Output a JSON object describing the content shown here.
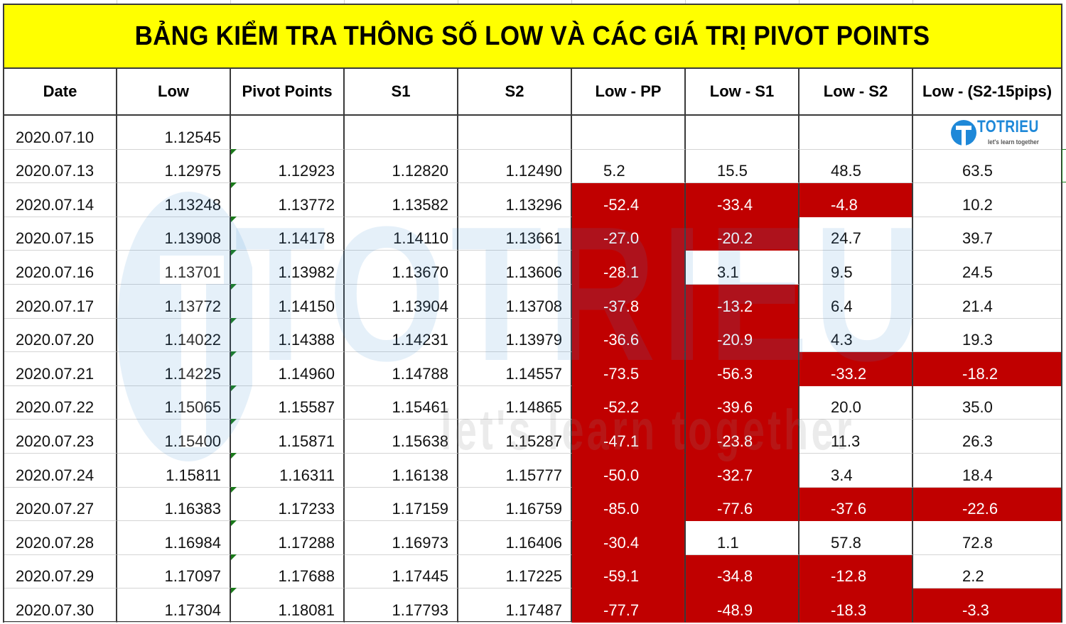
{
  "title": "BẢNG KIỂM TRA THÔNG SỐ LOW VÀ CÁC GIÁ TRỊ PIVOT POINTS",
  "colors": {
    "title_bg": "#ffff00",
    "negative_bg": "#c00000",
    "negative_text": "#ffffff",
    "border": "#3a3a3a",
    "brand": "#1e88d8",
    "comment_flag": "#1a7a1a"
  },
  "brand": {
    "name": "TOTRIEU",
    "tagline": "let's learn together",
    "icon": "totrieu-logo-icon"
  },
  "watermark": {
    "text": "TOTRIEU",
    "tagline": "let's learn together"
  },
  "table": {
    "columns": [
      "Date",
      "Low",
      "Pivot Points",
      "S1",
      "S2",
      "Low - PP",
      "Low - S1",
      "Low - S2",
      "Low - (S2-15pips)"
    ],
    "rows": [
      {
        "date": "2020.07.10",
        "low": "1.12545",
        "pp": "",
        "s1": "",
        "s2": "",
        "low_pp": "",
        "low_s1": "",
        "low_s2": "",
        "low_s2_15": ""
      },
      {
        "date": "2020.07.13",
        "low": "1.12975",
        "pp": "1.12923",
        "s1": "1.12820",
        "s2": "1.12490",
        "low_pp": "5.2",
        "low_s1": "15.5",
        "low_s2": "48.5",
        "low_s2_15": "63.5"
      },
      {
        "date": "2020.07.14",
        "low": "1.13248",
        "pp": "1.13772",
        "s1": "1.13582",
        "s2": "1.13296",
        "low_pp": "-52.4",
        "low_s1": "-33.4",
        "low_s2": "-4.8",
        "low_s2_15": "10.2"
      },
      {
        "date": "2020.07.15",
        "low": "1.13908",
        "pp": "1.14178",
        "s1": "1.14110",
        "s2": "1.13661",
        "low_pp": "-27.0",
        "low_s1": "-20.2",
        "low_s2": "24.7",
        "low_s2_15": "39.7"
      },
      {
        "date": "2020.07.16",
        "low": "1.13701",
        "pp": "1.13982",
        "s1": "1.13670",
        "s2": "1.13606",
        "low_pp": "-28.1",
        "low_s1": "3.1",
        "low_s2": "9.5",
        "low_s2_15": "24.5"
      },
      {
        "date": "2020.07.17",
        "low": "1.13772",
        "pp": "1.14150",
        "s1": "1.13904",
        "s2": "1.13708",
        "low_pp": "-37.8",
        "low_s1": "-13.2",
        "low_s2": "6.4",
        "low_s2_15": "21.4"
      },
      {
        "date": "2020.07.20",
        "low": "1.14022",
        "pp": "1.14388",
        "s1": "1.14231",
        "s2": "1.13979",
        "low_pp": "-36.6",
        "low_s1": "-20.9",
        "low_s2": "4.3",
        "low_s2_15": "19.3"
      },
      {
        "date": "2020.07.21",
        "low": "1.14225",
        "pp": "1.14960",
        "s1": "1.14788",
        "s2": "1.14557",
        "low_pp": "-73.5",
        "low_s1": "-56.3",
        "low_s2": "-33.2",
        "low_s2_15": "-18.2"
      },
      {
        "date": "2020.07.22",
        "low": "1.15065",
        "pp": "1.15587",
        "s1": "1.15461",
        "s2": "1.14865",
        "low_pp": "-52.2",
        "low_s1": "-39.6",
        "low_s2": "20.0",
        "low_s2_15": "35.0"
      },
      {
        "date": "2020.07.23",
        "low": "1.15400",
        "pp": "1.15871",
        "s1": "1.15638",
        "s2": "1.15287",
        "low_pp": "-47.1",
        "low_s1": "-23.8",
        "low_s2": "11.3",
        "low_s2_15": "26.3"
      },
      {
        "date": "2020.07.24",
        "low": "1.15811",
        "pp": "1.16311",
        "s1": "1.16138",
        "s2": "1.15777",
        "low_pp": "-50.0",
        "low_s1": "-32.7",
        "low_s2": "3.4",
        "low_s2_15": "18.4"
      },
      {
        "date": "2020.07.27",
        "low": "1.16383",
        "pp": "1.17233",
        "s1": "1.17159",
        "s2": "1.16759",
        "low_pp": "-85.0",
        "low_s1": "-77.6",
        "low_s2": "-37.6",
        "low_s2_15": "-22.6"
      },
      {
        "date": "2020.07.28",
        "low": "1.16984",
        "pp": "1.17288",
        "s1": "1.16973",
        "s2": "1.16406",
        "low_pp": "-30.4",
        "low_s1": "1.1",
        "low_s2": "57.8",
        "low_s2_15": "72.8"
      },
      {
        "date": "2020.07.29",
        "low": "1.17097",
        "pp": "1.17688",
        "s1": "1.17445",
        "s2": "1.17225",
        "low_pp": "-59.1",
        "low_s1": "-34.8",
        "low_s2": "-12.8",
        "low_s2_15": "2.2"
      },
      {
        "date": "2020.07.30",
        "low": "1.17304",
        "pp": "1.18081",
        "s1": "1.17793",
        "s2": "1.17487",
        "low_pp": "-77.7",
        "low_s1": "-48.9",
        "low_s2": "-18.3",
        "low_s2_15": "-3.3"
      }
    ]
  }
}
